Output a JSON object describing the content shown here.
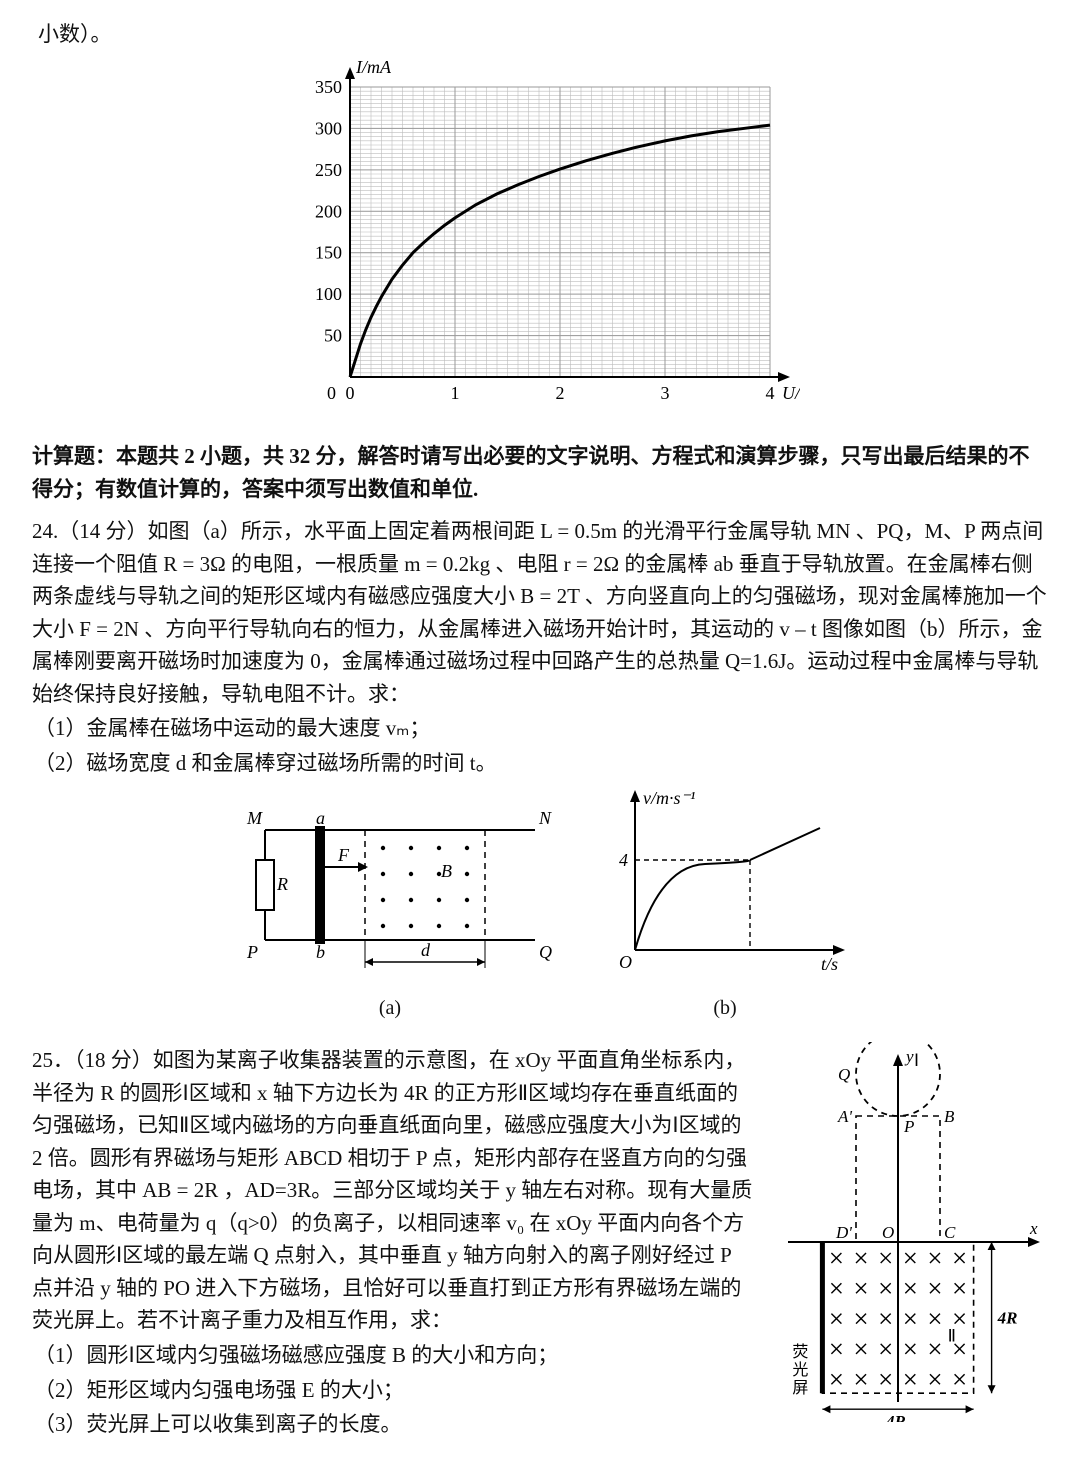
{
  "fragment_top": "小数）。",
  "iv_chart": {
    "type": "line",
    "x_label": "U/V",
    "y_label": "I/mA",
    "xlim": [
      0,
      4
    ],
    "ylim": [
      0,
      350
    ],
    "x_ticks": [
      0,
      1,
      2,
      3,
      4
    ],
    "y_ticks": [
      50,
      100,
      150,
      200,
      250,
      300,
      350
    ],
    "minor_per_major": 10,
    "axis_color": "#000000",
    "grid_color": "#9a9a9a",
    "minor_grid_color": "#bdbdbd",
    "curve_color": "#000000",
    "curve_width": 3,
    "background_color": "#ffffff",
    "tick_fontsize": 18,
    "points": [
      [
        0.0,
        0
      ],
      [
        0.05,
        20
      ],
      [
        0.1,
        40
      ],
      [
        0.15,
        57
      ],
      [
        0.2,
        72
      ],
      [
        0.25,
        85
      ],
      [
        0.3,
        97
      ],
      [
        0.4,
        118
      ],
      [
        0.5,
        135
      ],
      [
        0.6,
        150
      ],
      [
        0.7,
        162
      ],
      [
        0.8,
        173
      ],
      [
        0.9,
        183
      ],
      [
        1.0,
        192
      ],
      [
        1.2,
        208
      ],
      [
        1.4,
        221
      ],
      [
        1.6,
        232
      ],
      [
        1.8,
        242
      ],
      [
        2.0,
        251
      ],
      [
        2.25,
        261
      ],
      [
        2.5,
        270
      ],
      [
        2.75,
        278
      ],
      [
        3.0,
        285
      ],
      [
        3.25,
        291
      ],
      [
        3.5,
        296
      ],
      [
        3.75,
        300
      ],
      [
        4.0,
        304
      ]
    ]
  },
  "section_instructions": "计算题：本题共 2 小题，共 32 分，解答时请写出必要的文字说明、方程式和演算步骤，只写出最后结果的不得分；有数值计算的，答案中须写出数值和单位.",
  "q24": {
    "number": "24.",
    "points": "（14 分）",
    "body": "如图（a）所示，水平面上固定着两根间距 L = 0.5m 的光滑平行金属导轨 MN 、PQ，M、P 两点间连接一个阻值 R = 3Ω 的电阻，一根质量 m = 0.2kg 、电阻 r = 2Ω 的金属棒 ab 垂直于导轨放置。在金属棒右侧两条虚线与导轨之间的矩形区域内有磁感应强度大小 B = 2T 、方向竖直向上的匀强磁场，现对金属棒施加一个大小 F = 2N 、方向平行导轨向右的恒力，从金属棒进入磁场开始计时，其运动的 v – t 图像如图（b）所示，金属棒刚要离开磁场时加速度为 0，金属棒通过磁场过程中回路产生的总热量 Q=1.6J。运动过程中金属棒与导轨始终保持良好接触，导轨电阻不计。求：",
    "sub1": "（1）金属棒在磁场中运动的最大速度 vₘ；",
    "sub2": "（2）磁场宽度 d 和金属棒穿过磁场所需的时间 t。",
    "fig_a": {
      "type": "diagram",
      "labels": {
        "M": "M",
        "N": "N",
        "P": "P",
        "Q": "Q",
        "a": "a",
        "b": "b",
        "B": "B",
        "F": "F",
        "R": "R",
        "d": "d"
      },
      "caption": "(a)",
      "stroke": "#000000",
      "stroke_width": 2,
      "background": "#ffffff",
      "dot_radius": 2.2
    },
    "fig_b": {
      "type": "line",
      "x_label": "t/s",
      "y_label": "v/m·s⁻¹",
      "y_mark": "4",
      "caption": "(b)",
      "axis_color": "#000000",
      "curve_color": "#000000",
      "dash_color": "#000000",
      "curve_width": 2
    }
  },
  "q25": {
    "number": "25．",
    "points": "（18 分）",
    "body": "如图为某离子收集器装置的示意图，在 xOy 平面直角坐标系内，半径为 R 的圆形Ⅰ区域和 x 轴下方边长为 4R 的正方形Ⅱ区域均存在垂直纸面的匀强磁场，已知Ⅱ区域内磁场的方向垂直纸面向里，磁感应强度大小为Ⅰ区域的 2 倍。圆形有界磁场与矩形 ABCD 相切于 P 点，矩形内部存在竖直方向的匀强电场，其中 AB = 2R ，AD=3R。三部分区域均关于 y 轴左右对称。现有大量质量为 m、电荷量为 q（q>0）的负离子，以相同速率 v₀ 在 xOy 平面内向各个方向从圆形Ⅰ区域的最左端 Q 点射入，其中垂直 y 轴方向射入的离子刚好经过 P 点并沿 y 轴的 PO 进入下方磁场，且恰好可以垂直打到正方形有界磁场左端的荧光屏上。若不计离子重力及相互作用，求：",
    "sub1": "（1）圆形Ⅰ区域内匀强磁场磁感应强度 B 的大小和方向；",
    "sub2": "（2）矩形区域内匀强电场强 E 的大小；",
    "sub3": "（3）荧光屏上可以收集到离子的长度。",
    "fig": {
      "type": "diagram",
      "labels": {
        "y": "y",
        "x": "x",
        "I": "Ⅰ",
        "II": "Ⅱ",
        "Q": "Q",
        "A": "A'",
        "P": "P",
        "B": "B",
        "D": "D'",
        "O": "O",
        "C": "C",
        "len4R_v": "4R",
        "len4R_h": "4R",
        "screen_cn": "荧\n光\n屏"
      },
      "axis_color": "#000000",
      "dash_color": "#000000",
      "cross_color": "#000000",
      "stroke_width": 2
    }
  }
}
